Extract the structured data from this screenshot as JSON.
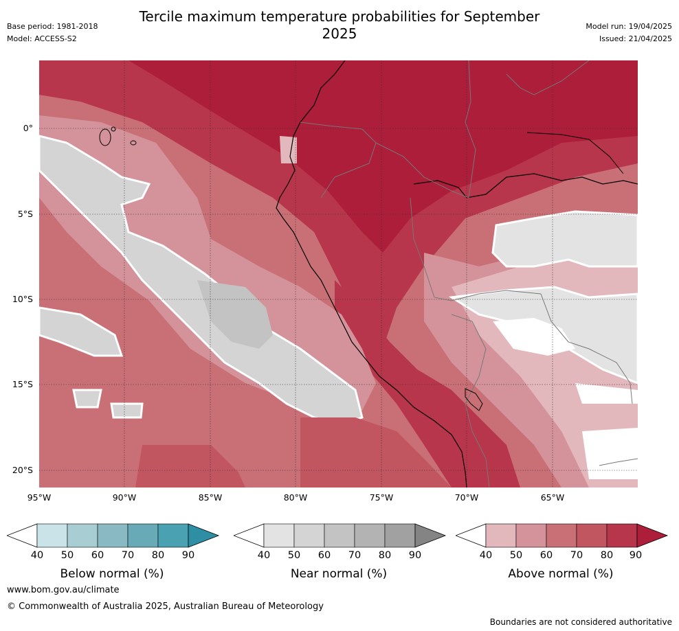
{
  "title": "Tercile maximum temperature probabilities for September 2025",
  "base_period": "Base period: 1981-2018",
  "model": "Model: ACCESS-S2",
  "model_run": "Model run: 19/04/2025",
  "issued": "Issued: 21/04/2025",
  "map": {
    "lat_labels": [
      "0°",
      "5°S",
      "10°S",
      "15°S",
      "20°S"
    ],
    "lon_labels": [
      "95°W",
      "90°W",
      "85°W",
      "80°W",
      "75°W",
      "70°W",
      "65°W"
    ]
  },
  "colorbars": [
    {
      "label": "Below normal (%)",
      "ticks": [
        "40",
        "50",
        "60",
        "70",
        "80",
        "90"
      ],
      "colors": [
        "#ffffff",
        "#c9e3e8",
        "#a8cdd2",
        "#89b9c2",
        "#68aab6",
        "#4aa1b1",
        "#2e8ea3"
      ]
    },
    {
      "label": "Near normal (%)",
      "ticks": [
        "40",
        "50",
        "60",
        "70",
        "80",
        "90"
      ],
      "colors": [
        "#ffffff",
        "#e3e3e3",
        "#d4d4d4",
        "#c3c3c3",
        "#b3b3b3",
        "#a1a1a1",
        "#848484"
      ]
    },
    {
      "label": "Above normal (%)",
      "ticks": [
        "40",
        "50",
        "60",
        "70",
        "80",
        "90"
      ],
      "colors": [
        "#ffffff",
        "#e2b8bd",
        "#d4939b",
        "#c97077",
        "#c15661",
        "#b8364b",
        "#ad1e3b"
      ]
    }
  ],
  "website": "www.bom.gov.au/climate",
  "copyright": "© Commonwealth of Australia 2025, Australian Bureau of Meteorology",
  "disclaimer": "Boundaries are not considered authoritative"
}
